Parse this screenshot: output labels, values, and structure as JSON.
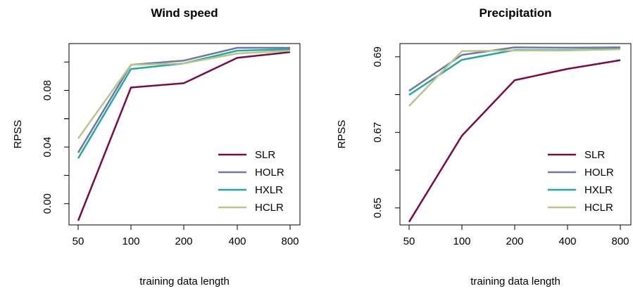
{
  "colors": {
    "SLR": "#7a0a4a",
    "HOLR": "#6f77aa",
    "HXLR": "#22a9a0",
    "HCLR": "#b7c48a"
  },
  "chart_data": [
    {
      "type": "line",
      "title": "Wind speed",
      "xlabel": "training data length",
      "ylabel": "RPSS",
      "categories": [
        "50",
        "100",
        "200",
        "400",
        "800"
      ],
      "ylim": [
        -0.015,
        0.113
      ],
      "yticks": [
        "0.00",
        "0.04",
        "0.08"
      ],
      "ytick_values": [
        0.0,
        0.04,
        0.08
      ],
      "legend_position": "bottom-right",
      "series": [
        {
          "name": "SLR",
          "values": [
            -0.012,
            0.082,
            0.085,
            0.103,
            0.107
          ]
        },
        {
          "name": "HOLR",
          "values": [
            0.036,
            0.098,
            0.101,
            0.11,
            0.11
          ]
        },
        {
          "name": "HXLR",
          "values": [
            0.032,
            0.095,
            0.099,
            0.108,
            0.109
          ]
        },
        {
          "name": "HCLR",
          "values": [
            0.046,
            0.098,
            0.099,
            0.106,
            0.108
          ]
        }
      ]
    },
    {
      "type": "line",
      "title": "Precipitation",
      "xlabel": "training data length",
      "ylabel": "RPSS",
      "categories": [
        "50",
        "100",
        "200",
        "400",
        "800"
      ],
      "ylim": [
        0.6455,
        0.6935
      ],
      "yticks": [
        "0.65",
        "0.67",
        "0.69"
      ],
      "ytick_values": [
        0.65,
        0.67,
        0.69
      ],
      "legend_position": "bottom-right",
      "series": [
        {
          "name": "SLR",
          "values": [
            0.6463,
            0.6691,
            0.6838,
            0.6868,
            0.6891
          ]
        },
        {
          "name": "HOLR",
          "values": [
            0.681,
            0.6905,
            0.6925,
            0.6924,
            0.6925
          ]
        },
        {
          "name": "HXLR",
          "values": [
            0.6799,
            0.6892,
            0.6918,
            0.6918,
            0.6921
          ]
        },
        {
          "name": "HCLR",
          "values": [
            0.677,
            0.6915,
            0.6917,
            0.6917,
            0.692
          ]
        }
      ]
    }
  ]
}
